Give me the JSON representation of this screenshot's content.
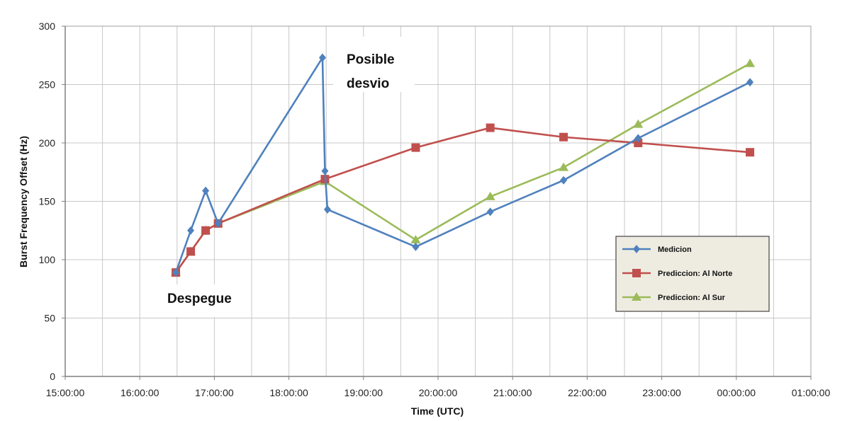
{
  "chart_data": {
    "type": "line",
    "title": "",
    "xlabel": "Time (UTC)",
    "ylabel": "Burst Frequency Offset (Hz)",
    "ylim": [
      0,
      300
    ],
    "yticks": [
      0,
      50,
      100,
      150,
      200,
      250,
      300
    ],
    "xlim": [
      "15:00:00",
      "01:00:00 (+1d)"
    ],
    "xtick_labels": [
      "15:00:00",
      "16:00:00",
      "17:00:00",
      "18:00:00",
      "19:00:00",
      "20:00:00",
      "21:00:00",
      "22:00:00",
      "23:00:00",
      "00:00:00",
      "01:00:00"
    ],
    "grid": true,
    "legend_position": "right",
    "series": [
      {
        "name": "Medicion",
        "color": "#4F81BD",
        "marker": "diamond",
        "points": [
          [
            "16:29",
            89
          ],
          [
            "16:41",
            125
          ],
          [
            "16:53",
            159
          ],
          [
            "17:03",
            131
          ],
          [
            "18:27",
            273
          ],
          [
            "18:29",
            176
          ],
          [
            "18:31",
            143
          ],
          [
            "19:42",
            111
          ],
          [
            "20:42",
            141
          ],
          [
            "21:41",
            168
          ],
          [
            "22:41",
            204
          ],
          [
            "00:11",
            252
          ]
        ]
      },
      {
        "name": "Prediccion:  Al Norte",
        "color": "#C0504D",
        "marker": "square",
        "points": [
          [
            "16:29",
            89
          ],
          [
            "16:41",
            107
          ],
          [
            "16:53",
            125
          ],
          [
            "17:03",
            131
          ],
          [
            "18:29",
            169
          ],
          [
            "19:42",
            196
          ],
          [
            "20:42",
            213
          ],
          [
            "21:41",
            205
          ],
          [
            "22:41",
            200
          ],
          [
            "00:11",
            192
          ]
        ]
      },
      {
        "name": "Prediccion:  Al Sur",
        "color": "#9BBB59",
        "marker": "triangle",
        "points": [
          [
            "16:29",
            89
          ],
          [
            "16:41",
            107
          ],
          [
            "16:53",
            125
          ],
          [
            "17:03",
            131
          ],
          [
            "18:29",
            167
          ],
          [
            "19:42",
            117
          ],
          [
            "20:42",
            154
          ],
          [
            "21:41",
            179
          ],
          [
            "22:41",
            216
          ],
          [
            "00:11",
            268
          ]
        ]
      }
    ],
    "annotations": [
      {
        "text_lines": [
          "Posible",
          "desvio"
        ]
      },
      {
        "text_lines": [
          "Despegue"
        ]
      }
    ]
  }
}
